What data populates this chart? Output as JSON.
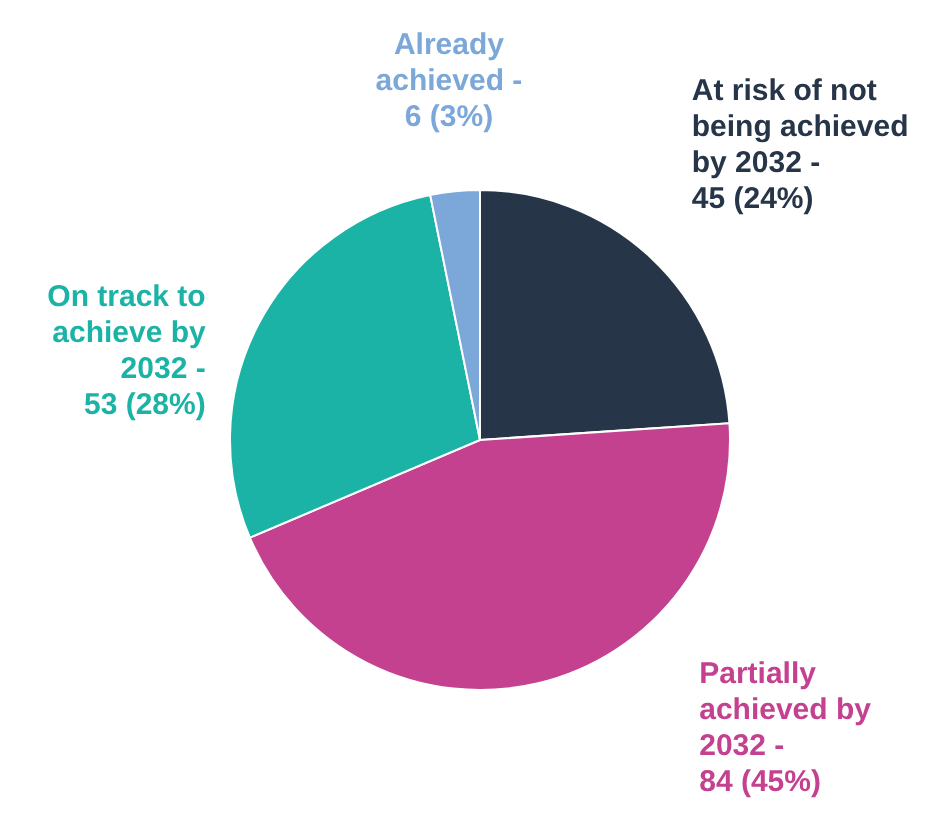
{
  "chart_data": {
    "type": "pie",
    "categories": [
      "At risk of not being achieved by 2032 -",
      "Partially achieved by 2032 -",
      "On track to achieve by 2032 -",
      "Already achieved -"
    ],
    "values": [
      45,
      84,
      53,
      6
    ],
    "colors": [
      "#263548",
      "#c4418f",
      "#1ab3a6",
      "#7ba7d9"
    ],
    "value_labels": [
      "45 (24%)",
      "84 (45%)",
      "53 (28%)",
      "6 (3%)"
    ]
  }
}
